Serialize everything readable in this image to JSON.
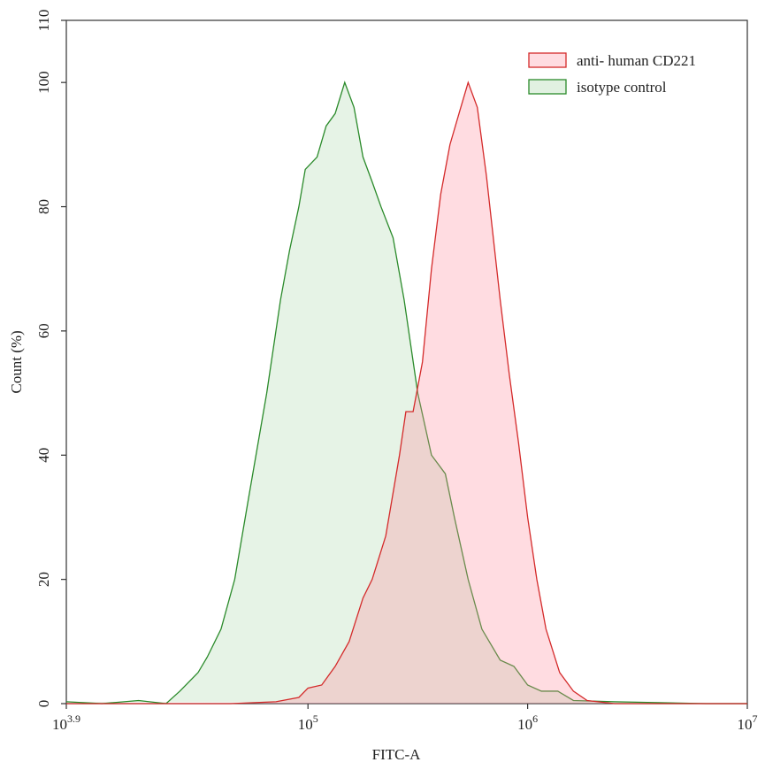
{
  "chart_data": {
    "type": "histogram-overlay",
    "xlabel": "FITC-A",
    "ylabel": "Count (%)",
    "xscale": "log",
    "xlim": [
      7943.28,
      10000000
    ],
    "xticks": [
      {
        "value": 7943.28,
        "label": "10",
        "exponent": "3.9"
      },
      {
        "value": 100000,
        "label": "10",
        "exponent": "5"
      },
      {
        "value": 1000000,
        "label": "10",
        "exponent": "6"
      },
      {
        "value": 10000000,
        "label": "10",
        "exponent": "7"
      }
    ],
    "ylim": [
      0,
      110
    ],
    "yticks": [
      0,
      20,
      40,
      60,
      80,
      100,
      110
    ],
    "legend": "upper right",
    "series": [
      {
        "name": "anti- human CD221",
        "color": "#d42a2a",
        "fill": "#ff8c9a",
        "x": [
          7943.28,
          44300,
          71500,
          90900,
          100000,
          115500,
          133000,
          154000,
          178000,
          196000,
          226000,
          261000,
          279000,
          301000,
          332000,
          365000,
          402000,
          443000,
          487000,
          536000,
          590000,
          649000,
          750000,
          825000,
          909000,
          1000000,
          1101000,
          1212000,
          1399000,
          1616000,
          1866000,
          2488000,
          10000000
        ],
        "values": [
          0,
          0,
          0.3,
          1,
          2.5,
          3,
          6,
          10,
          17,
          20,
          27,
          40,
          47,
          47,
          55,
          70,
          82,
          90,
          95,
          100,
          96,
          85,
          65,
          53,
          42,
          30,
          20,
          12,
          5,
          2,
          0.5,
          0,
          0
        ]
      },
      {
        "name": "isotype control",
        "color": "#2a8a2a",
        "fill": "#9ccf9c",
        "x": [
          7943.28,
          11550,
          16940,
          22600,
          26100,
          31600,
          34800,
          40200,
          46400,
          53600,
          64900,
          75000,
          82500,
          90900,
          97200,
          110000,
          121000,
          133000,
          147000,
          162000,
          178000,
          196000,
          215000,
          244000,
          274000,
          316000,
          365000,
          422000,
          464000,
          536000,
          619000,
          750000,
          866000,
          1000000,
          1155000,
          1372000,
          1616000,
          2488000,
          6494000,
          10000000
        ],
        "values": [
          0.3,
          0,
          0.5,
          0,
          2,
          5,
          7.5,
          12,
          20,
          33,
          50,
          65,
          73,
          80,
          86,
          88,
          93,
          95,
          100,
          96,
          88,
          84,
          80,
          75,
          65,
          50,
          40,
          37,
          30,
          20,
          12,
          7,
          6,
          3,
          2,
          2,
          0.5,
          0.3,
          0,
          0
        ]
      }
    ]
  }
}
